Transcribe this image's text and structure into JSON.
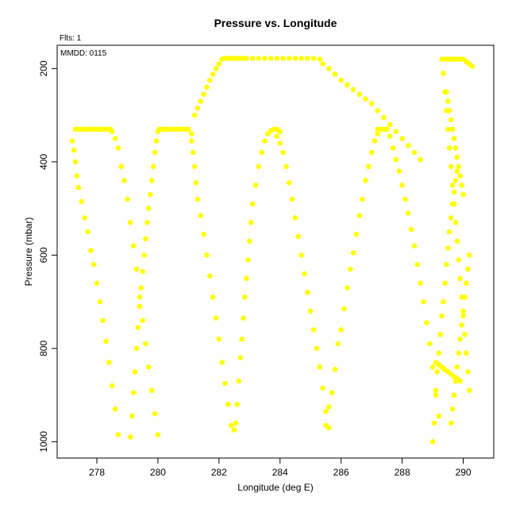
{
  "chart_data": {
    "type": "scatter",
    "title": "Pressure vs. Longitude",
    "annotations": {
      "flts": "Flts: 1",
      "mmdd": "MMDD: 0115"
    },
    "xlabel": "Longitude (deg E)",
    "ylabel": "Pressure (mbar)",
    "xlim": [
      276.7,
      291
    ],
    "ylim": [
      1035,
      150
    ],
    "y_inverted": true,
    "x_ticks": [
      278,
      280,
      282,
      284,
      286,
      288,
      290
    ],
    "y_ticks": [
      200,
      400,
      600,
      800,
      1000
    ],
    "grid": false,
    "marker_color": "#ffff00",
    "series": [
      {
        "x": [
          277.2,
          277.25,
          277.3,
          277.35,
          277.4,
          277.5,
          277.6,
          277.7,
          277.8,
          277.9,
          278.0,
          278.1,
          278.2,
          278.3,
          278.4,
          278.5,
          278.6,
          278.7,
          277.3,
          277.4,
          277.5,
          277.6,
          277.7,
          277.8,
          277.9,
          278.0,
          278.1,
          278.2,
          278.3,
          278.4,
          278.45,
          278.5,
          278.6,
          278.7,
          278.8,
          278.9,
          279.0,
          279.1,
          279.2,
          279.3,
          279.4,
          279.5,
          279.6,
          279.7,
          279.8,
          279.9,
          280.0,
          279.1,
          279.15,
          279.2,
          279.25,
          279.3,
          279.35,
          279.4,
          279.45,
          279.5,
          279.55,
          279.6,
          279.65,
          279.7,
          279.75,
          279.8,
          279.85,
          279.9,
          279.95,
          280.0,
          280.05,
          280.1,
          280.15,
          280.2,
          280.3,
          280.4,
          280.5,
          280.6,
          280.7,
          280.8,
          280.9,
          281.0,
          281.1,
          281.1,
          281.15,
          281.2,
          281.25,
          281.3,
          281.4,
          281.5,
          281.6,
          281.7,
          281.8,
          281.9,
          282.0,
          282.1,
          282.2,
          282.3,
          282.4,
          281.2,
          281.3,
          281.4,
          281.5,
          281.6,
          281.7,
          281.8,
          281.9,
          282.0,
          282.1,
          282.2,
          282.3,
          282.4,
          282.5,
          282.6,
          282.7,
          282.8,
          282.9,
          283.1,
          283.3,
          283.5,
          283.7,
          283.9,
          284.1,
          284.3,
          284.5,
          284.7,
          284.9,
          285.1,
          285.3,
          282.5,
          282.55,
          282.6,
          282.65,
          282.7,
          282.75,
          282.8,
          282.85,
          282.9,
          282.95,
          283.0,
          283.05,
          283.1,
          283.2,
          283.3,
          283.4,
          283.5,
          283.6,
          283.7,
          283.8,
          283.9,
          284.0,
          283.9,
          284.0,
          284.1,
          284.2,
          284.3,
          284.4,
          284.5,
          284.6,
          284.7,
          284.8,
          284.9,
          285.0,
          285.1,
          285.2,
          285.3,
          285.4,
          285.5,
          285.6,
          285.5,
          285.6,
          285.7,
          285.8,
          285.9,
          286.0,
          286.1,
          286.2,
          286.3,
          286.4,
          286.5,
          286.6,
          286.7,
          286.8,
          286.9,
          287.0,
          287.1,
          287.2,
          285.4,
          285.6,
          285.8,
          286.0,
          286.2,
          286.4,
          286.6,
          286.8,
          287.0,
          287.2,
          287.4,
          287.6,
          287.8,
          288.0,
          288.2,
          288.4,
          288.6,
          287.2,
          287.3,
          287.4,
          287.5,
          287.6,
          287.7,
          287.8,
          287.9,
          288.0,
          288.1,
          288.2,
          288.3,
          288.4,
          288.5,
          288.6,
          288.7,
          288.8,
          288.9,
          289.0,
          289.1,
          289.2,
          289.0,
          289.05,
          289.1,
          289.15,
          289.2,
          289.25,
          289.3,
          289.35,
          289.4,
          289.45,
          289.5,
          289.55,
          289.6,
          289.65,
          289.7,
          289.75,
          289.8,
          289.3,
          289.35,
          289.4,
          289.45,
          289.5,
          289.55,
          289.6,
          289.65,
          289.7,
          289.75,
          289.8,
          289.85,
          289.9,
          289.95,
          290.0,
          290.05,
          290.1,
          290.15,
          290.2,
          289.4,
          289.5,
          289.6,
          289.7,
          289.8,
          289.9,
          290.0,
          290.1,
          290.2,
          290.3,
          289.6,
          289.65,
          289.7,
          289.75,
          289.8,
          289.85,
          289.9,
          289.95,
          290.0,
          290.05,
          290.1,
          290.15,
          290.2,
          289.45,
          289.5,
          289.55,
          289.6,
          289.65,
          289.7,
          289.75,
          289.8,
          289.85,
          289.9,
          289.95,
          290.0,
          289.1,
          289.2,
          289.3,
          289.4,
          289.5,
          289.6,
          289.7,
          289.8,
          289.9
        ],
        "y": [
          355,
          375,
          400,
          430,
          455,
          485,
          520,
          550,
          590,
          620,
          660,
          700,
          740,
          785,
          830,
          880,
          930,
          985,
          330,
          330,
          330,
          330,
          330,
          330,
          330,
          330,
          330,
          330,
          330,
          330,
          330,
          335,
          350,
          370,
          410,
          440,
          480,
          530,
          580,
          630,
          690,
          740,
          790,
          840,
          890,
          940,
          985,
          990,
          945,
          895,
          850,
          800,
          755,
          710,
          670,
          635,
          600,
          565,
          530,
          500,
          470,
          440,
          410,
          380,
          355,
          335,
          330,
          330,
          330,
          330,
          330,
          330,
          330,
          330,
          330,
          330,
          330,
          330,
          340,
          355,
          380,
          410,
          445,
          480,
          515,
          555,
          600,
          645,
          690,
          735,
          780,
          830,
          875,
          920,
          965,
          300,
          285,
          270,
          255,
          240,
          225,
          212,
          200,
          190,
          180,
          178,
          178,
          178,
          178,
          178,
          178,
          178,
          178,
          178,
          178,
          178,
          178,
          178,
          178,
          178,
          178,
          178,
          178,
          178,
          180,
          975,
          960,
          920,
          870,
          820,
          780,
          735,
          690,
          650,
          610,
          570,
          530,
          490,
          450,
          410,
          380,
          355,
          340,
          333,
          330,
          330,
          335,
          345,
          360,
          380,
          410,
          445,
          480,
          520,
          560,
          600,
          640,
          680,
          720,
          760,
          800,
          840,
          885,
          935,
          970,
          965,
          925,
          895,
          845,
          790,
          760,
          715,
          670,
          630,
          595,
          555,
          515,
          480,
          440,
          410,
          380,
          355,
          340,
          190,
          200,
          212,
          225,
          235,
          245,
          255,
          265,
          275,
          290,
          305,
          320,
          335,
          350,
          365,
          380,
          395,
          330,
          330,
          330,
          330,
          345,
          370,
          395,
          420,
          450,
          480,
          510,
          545,
          580,
          620,
          660,
          700,
          745,
          790,
          840,
          890,
          945,
          1000,
          960,
          900,
          850,
          810,
          770,
          730,
          700,
          660,
          620,
          585,
          550,
          520,
          490,
          465,
          440,
          420,
          180,
          210,
          250,
          290,
          330,
          370,
          410,
          450,
          490,
          530,
          570,
          610,
          650,
          690,
          730,
          770,
          810,
          850,
          890,
          180,
          180,
          180,
          180,
          180,
          180,
          180,
          185,
          190,
          195,
          960,
          930,
          900,
          870,
          840,
          810,
          780,
          750,
          720,
          690,
          660,
          630,
          600,
          250,
          270,
          290,
          310,
          330,
          350,
          370,
          390,
          410,
          430,
          450,
          470,
          830,
          835,
          840,
          845,
          850,
          855,
          860,
          865,
          870
        ]
      }
    ]
  }
}
